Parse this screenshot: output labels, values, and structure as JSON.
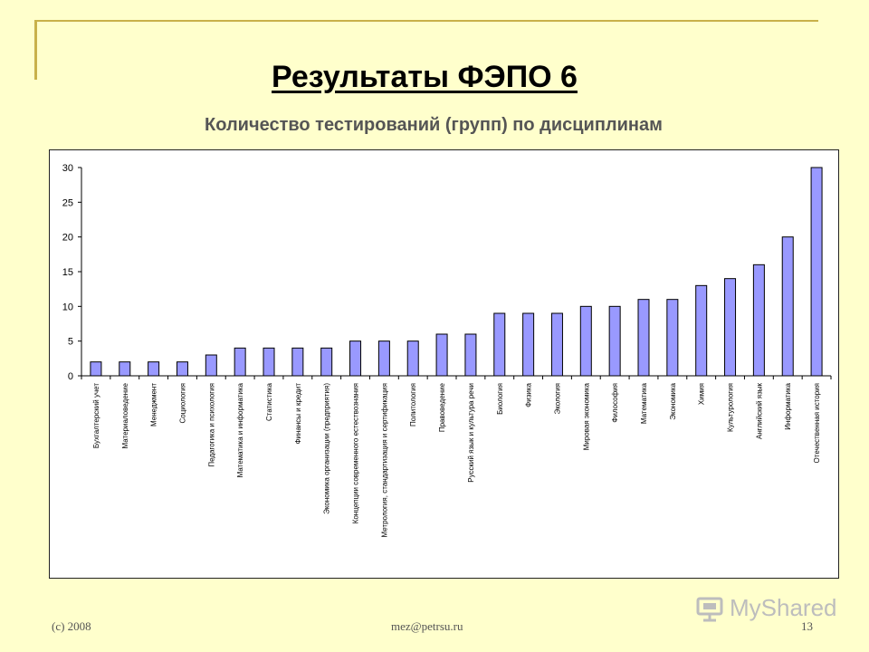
{
  "slide": {
    "title": "Результаты ФЭПО 6",
    "subtitle": "Количество тестирований (групп) по дисциплинам"
  },
  "footer": {
    "left": "(c) 2008",
    "center": "mez@petrsu.ru",
    "page": "13"
  },
  "watermark": {
    "text": "MyShared"
  },
  "colors": {
    "background": "#ffffcc",
    "bar_fill": "#9999ff",
    "bar_stroke": "#000000",
    "accent": "#c8b14a"
  },
  "chart_data": {
    "type": "bar",
    "title": "",
    "xlabel": "",
    "ylabel": "",
    "ylim": [
      0,
      30
    ],
    "yticks": [
      0,
      5,
      10,
      15,
      20,
      25,
      30
    ],
    "grid": false,
    "categories": [
      "Бухгалтерский учет",
      "Материаловедение",
      "Менеджмент",
      "Социология",
      "Педагогика и психология",
      "Математика и информатика",
      "Статистика",
      "Финансы и кредит",
      "Экономика организации (предприятия)",
      "Концепции современного естествознания",
      "Метрология, стандартизация и сертификация",
      "Политология",
      "Правоведение",
      "Русский язык и культура речи",
      "Биология",
      "Физика",
      "Экология",
      "Мировая экономика",
      "Философия",
      "Математика",
      "Экономика",
      "Химия",
      "Культурология",
      "Английский язык",
      "Информатика",
      "Отечественная история"
    ],
    "values": [
      2,
      2,
      2,
      2,
      3,
      4,
      4,
      4,
      4,
      5,
      5,
      5,
      6,
      6,
      9,
      9,
      9,
      10,
      10,
      11,
      11,
      13,
      14,
      16,
      20,
      30
    ]
  }
}
